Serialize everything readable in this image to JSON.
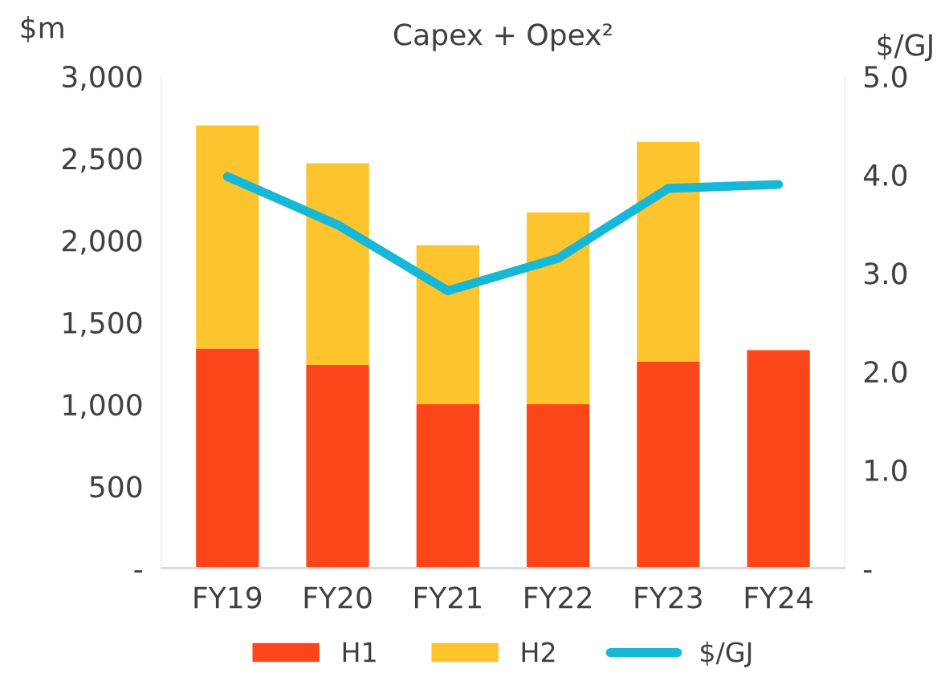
{
  "chart_data": {
    "type": "bar",
    "title": "Capex + Opex²",
    "ylabel": "$m",
    "y2label": "$/GJ",
    "categories": [
      "FY19",
      "FY20",
      "FY21",
      "FY22",
      "FY23",
      "FY24"
    ],
    "stacked": true,
    "series": [
      {
        "name": "H1",
        "color": "#fc4619",
        "values": [
          1340,
          1240,
          1000,
          1000,
          1260,
          1330
        ]
      },
      {
        "name": "H2",
        "color": "#fec42d",
        "values": [
          1360,
          1230,
          970,
          1170,
          1340,
          null
        ]
      },
      {
        "name": "$/GJ",
        "type": "line",
        "axis": "y2",
        "color": "#16b8d6",
        "values": [
          3.98,
          3.49,
          2.82,
          3.15,
          3.86,
          3.9
        ]
      }
    ],
    "ylim": [
      0,
      3000
    ],
    "yticks": [
      {
        "value": 0,
        "label": "-"
      },
      {
        "value": 500,
        "label": "500"
      },
      {
        "value": 1000,
        "label": "1,000"
      },
      {
        "value": 1500,
        "label": "1,500"
      },
      {
        "value": 2000,
        "label": "2,000"
      },
      {
        "value": 2500,
        "label": "2,500"
      },
      {
        "value": 3000,
        "label": "3,000"
      }
    ],
    "y2lim": [
      0,
      5
    ],
    "y2ticks": [
      {
        "value": 0,
        "label": "-"
      },
      {
        "value": 1,
        "label": "1.0"
      },
      {
        "value": 2,
        "label": "2.0"
      },
      {
        "value": 3,
        "label": "3.0"
      },
      {
        "value": 4,
        "label": "4.0"
      },
      {
        "value": 5,
        "label": "5.0"
      }
    ],
    "legend": "bottom"
  }
}
